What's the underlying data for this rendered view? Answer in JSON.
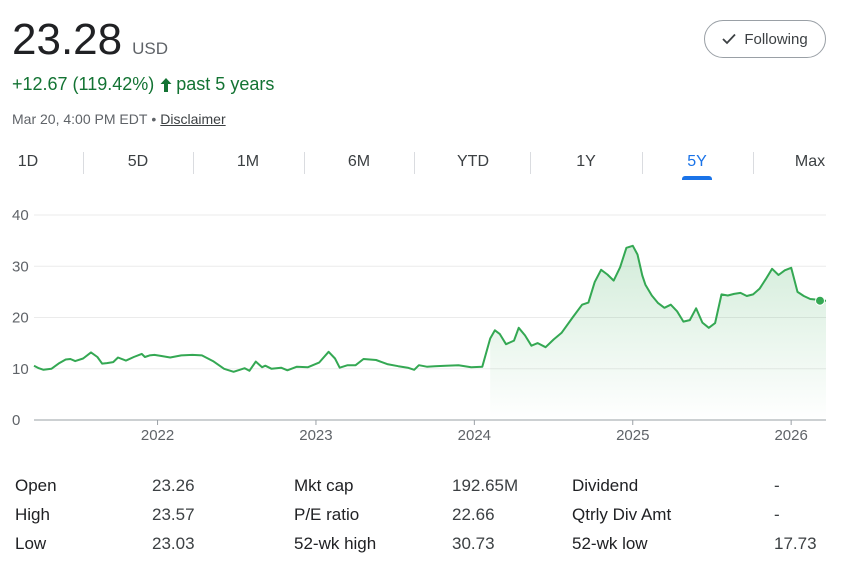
{
  "quote": {
    "price": "23.28",
    "currency": "USD",
    "change": "+12.67 (119.42%)",
    "period": "past 5 years",
    "timestamp": "Mar 20, 4:00 PM EDT",
    "separator": "•",
    "disclaimer": "Disclaimer"
  },
  "follow_button": {
    "label": "Following"
  },
  "ranges": [
    {
      "label": "1D",
      "active": false
    },
    {
      "label": "5D",
      "active": false
    },
    {
      "label": "1M",
      "active": false
    },
    {
      "label": "6M",
      "active": false
    },
    {
      "label": "YTD",
      "active": false
    },
    {
      "label": "1Y",
      "active": false
    },
    {
      "label": "5Y",
      "active": true
    },
    {
      "label": "Max",
      "active": false
    }
  ],
  "colors": {
    "up": "#137333",
    "line": "#34a853",
    "accent": "#1a73e8",
    "grid": "#ebebeb"
  },
  "chart_data": {
    "type": "area",
    "title": "",
    "xlabel": "",
    "ylabel": "",
    "ylim": [
      0,
      40
    ],
    "yticks": [
      "0",
      "10",
      "20",
      "30",
      "40"
    ],
    "xticks": [
      "2022",
      "2023",
      "2024",
      "2025",
      "2026"
    ],
    "xtick_years": [
      2022,
      2023,
      2024,
      2025,
      2026
    ],
    "xlim": [
      2021.22,
      2026.22
    ],
    "grid": true,
    "series": [
      {
        "x": [
          2021.22,
          2021.25,
          2021.28,
          2021.33,
          2021.38,
          2021.42,
          2021.45,
          2021.48,
          2021.53,
          2021.58,
          2021.62,
          2021.65,
          2021.68,
          2021.72,
          2021.75,
          2021.8,
          2021.85,
          2021.9,
          2021.92,
          2021.95,
          2021.98,
          2022.02,
          2022.08,
          2022.15,
          2022.22,
          2022.28,
          2022.35,
          2022.42,
          2022.48,
          2022.55,
          2022.58,
          2022.62,
          2022.66,
          2022.68,
          2022.72,
          2022.78,
          2022.82,
          2022.88,
          2022.95,
          2023.02,
          2023.08,
          2023.12,
          2023.15,
          2023.2,
          2023.25,
          2023.3,
          2023.38,
          2023.45,
          2023.52,
          2023.58,
          2023.62,
          2023.65,
          2023.7,
          2023.75,
          2023.82,
          2023.9,
          2023.98,
          2024.05,
          2024.1,
          2024.13,
          2024.16,
          2024.2,
          2024.25,
          2024.28,
          2024.32,
          2024.36,
          2024.4,
          2024.45,
          2024.5,
          2024.55,
          2024.62,
          2024.68,
          2024.72,
          2024.76,
          2024.8,
          2024.84,
          2024.88,
          2024.92,
          2024.96,
          2025.0,
          2025.03,
          2025.06,
          2025.08,
          2025.12,
          2025.16,
          2025.2,
          2025.24,
          2025.28,
          2025.32,
          2025.36,
          2025.4,
          2025.44,
          2025.48,
          2025.52,
          2025.56,
          2025.6,
          2025.64,
          2025.68,
          2025.72,
          2025.76,
          2025.8,
          2025.84,
          2025.88,
          2025.92,
          2025.96,
          2026.0,
          2026.04,
          2026.08,
          2026.12,
          2026.16,
          2026.19,
          2026.22
        ],
        "y": [
          10.6,
          10.1,
          9.8,
          10.0,
          11.1,
          11.8,
          11.9,
          11.5,
          12.0,
          13.2,
          12.3,
          11.0,
          11.1,
          11.3,
          12.2,
          11.6,
          12.3,
          12.9,
          12.3,
          12.6,
          12.7,
          12.5,
          12.2,
          12.6,
          12.7,
          12.6,
          11.5,
          10.0,
          9.4,
          10.1,
          9.6,
          11.4,
          10.3,
          10.6,
          10.0,
          10.2,
          9.7,
          10.4,
          10.3,
          11.2,
          13.3,
          12.0,
          10.2,
          10.7,
          10.7,
          11.9,
          11.7,
          10.9,
          10.5,
          10.2,
          9.8,
          10.7,
          10.4,
          10.5,
          10.6,
          10.7,
          10.3,
          10.4,
          15.9,
          17.5,
          16.8,
          14.8,
          15.5,
          18.0,
          16.5,
          14.5,
          15.0,
          14.2,
          15.7,
          17.0,
          20.0,
          22.5,
          22.9,
          26.9,
          29.3,
          28.4,
          27.2,
          29.8,
          33.6,
          34.0,
          32.3,
          28.2,
          26.4,
          24.3,
          22.8,
          21.9,
          22.5,
          21.2,
          19.2,
          19.5,
          21.8,
          19.0,
          18.0,
          18.9,
          24.5,
          24.3,
          24.6,
          24.8,
          24.2,
          24.5,
          25.6,
          27.5,
          29.5,
          28.3,
          29.2,
          29.7,
          25.0,
          24.2,
          23.6,
          23.5,
          23.3,
          23.28
        ]
      }
    ]
  },
  "stats": {
    "rows": [
      [
        {
          "label": "Open",
          "value": "23.26"
        },
        {
          "label": "Mkt cap",
          "value": "192.65M"
        },
        {
          "label": "Dividend",
          "value": "-"
        }
      ],
      [
        {
          "label": "High",
          "value": "23.57"
        },
        {
          "label": "P/E ratio",
          "value": "22.66"
        },
        {
          "label": "Qtrly Div Amt",
          "value": "-"
        }
      ],
      [
        {
          "label": "Low",
          "value": "23.03"
        },
        {
          "label": "52-wk high",
          "value": "30.73"
        },
        {
          "label": "52-wk low",
          "value": "17.73"
        }
      ]
    ]
  }
}
